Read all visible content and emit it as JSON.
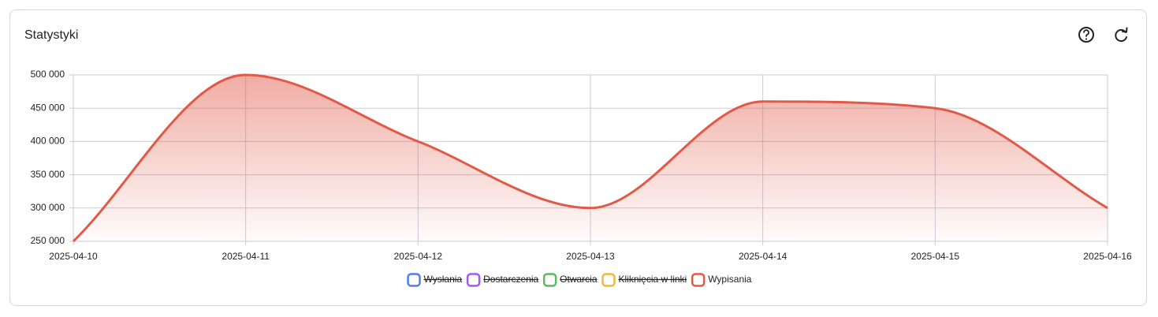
{
  "header": {
    "title": "Statystyki"
  },
  "chart_data": {
    "type": "line",
    "x": [
      "2025-04-10",
      "2025-04-11",
      "2025-04-12",
      "2025-04-13",
      "2025-04-14",
      "2025-04-15",
      "2025-04-16"
    ],
    "series": [
      {
        "name": "Wysłania",
        "color": "#4f7df3",
        "hidden": true,
        "values": [
          null,
          null,
          null,
          null,
          null,
          null,
          null
        ]
      },
      {
        "name": "Dostarczenia",
        "color": "#a259f0",
        "hidden": true,
        "values": [
          null,
          null,
          null,
          null,
          null,
          null,
          null
        ]
      },
      {
        "name": "Otwarcia",
        "color": "#5cb85c",
        "hidden": true,
        "values": [
          null,
          null,
          null,
          null,
          null,
          null,
          null
        ]
      },
      {
        "name": "Kliknięcia w linki",
        "color": "#f5b73b",
        "hidden": true,
        "values": [
          null,
          null,
          null,
          null,
          null,
          null,
          null
        ]
      },
      {
        "name": "Wypisania",
        "color": "#e05a47",
        "hidden": false,
        "values": [
          250000,
          500000,
          400000,
          300000,
          460000,
          450000,
          300000
        ]
      }
    ],
    "ylim": [
      250000,
      500000
    ],
    "yticks": [
      {
        "value": 250000,
        "label": "250 000"
      },
      {
        "value": 300000,
        "label": "300 000"
      },
      {
        "value": 350000,
        "label": "350 000"
      },
      {
        "value": 400000,
        "label": "400 000"
      },
      {
        "value": 450000,
        "label": "450 000"
      },
      {
        "value": 500000,
        "label": "500 000"
      }
    ],
    "grid": true,
    "fill": true,
    "legend": "bottom"
  }
}
